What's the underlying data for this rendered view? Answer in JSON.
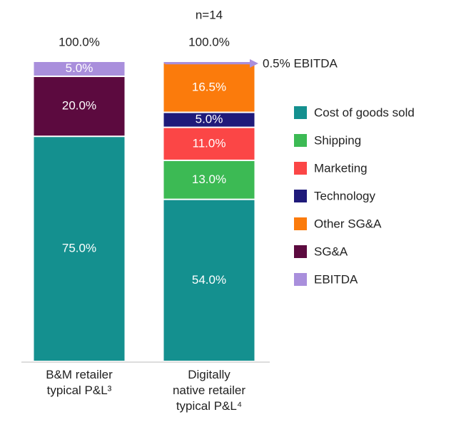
{
  "chart_data": {
    "type": "stacked_bar",
    "annotations": [
      "n=14",
      "0.5% EBITDA"
    ],
    "categories": [
      "B&M retailer typical P&L³",
      "Digitally native retailer typical P&L⁴"
    ],
    "totals": [
      100,
      100
    ],
    "total_labels": [
      "100.0%",
      "100.0%"
    ],
    "ylim": [
      0,
      100
    ],
    "series": [
      {
        "name": "Cost of goods sold",
        "color": "#14908f",
        "values": [
          75,
          54
        ],
        "value_labels": [
          "75.0%",
          "54.0%"
        ]
      },
      {
        "name": "Shipping",
        "color": "#3cba54",
        "values": [
          null,
          13
        ],
        "value_labels": [
          null,
          "13.0%"
        ]
      },
      {
        "name": "Marketing",
        "color": "#fb4646",
        "values": [
          null,
          11
        ],
        "value_labels": [
          null,
          "11.0%"
        ]
      },
      {
        "name": "Technology",
        "color": "#1f1a7a",
        "values": [
          null,
          5
        ],
        "value_labels": [
          null,
          "5.0%"
        ]
      },
      {
        "name": "Other SG&A",
        "color": "#fb7b0c",
        "values": [
          null,
          16.5
        ],
        "value_labels": [
          null,
          "16.5%"
        ]
      },
      {
        "name": "SG&A",
        "color": "#5c0a3f",
        "values": [
          20,
          null
        ],
        "value_labels": [
          "20.0%",
          null
        ]
      },
      {
        "name": "EBITDA",
        "color": "#a98fdc",
        "values": [
          5,
          0.5
        ],
        "value_labels": [
          "5.0%",
          null
        ]
      }
    ]
  }
}
